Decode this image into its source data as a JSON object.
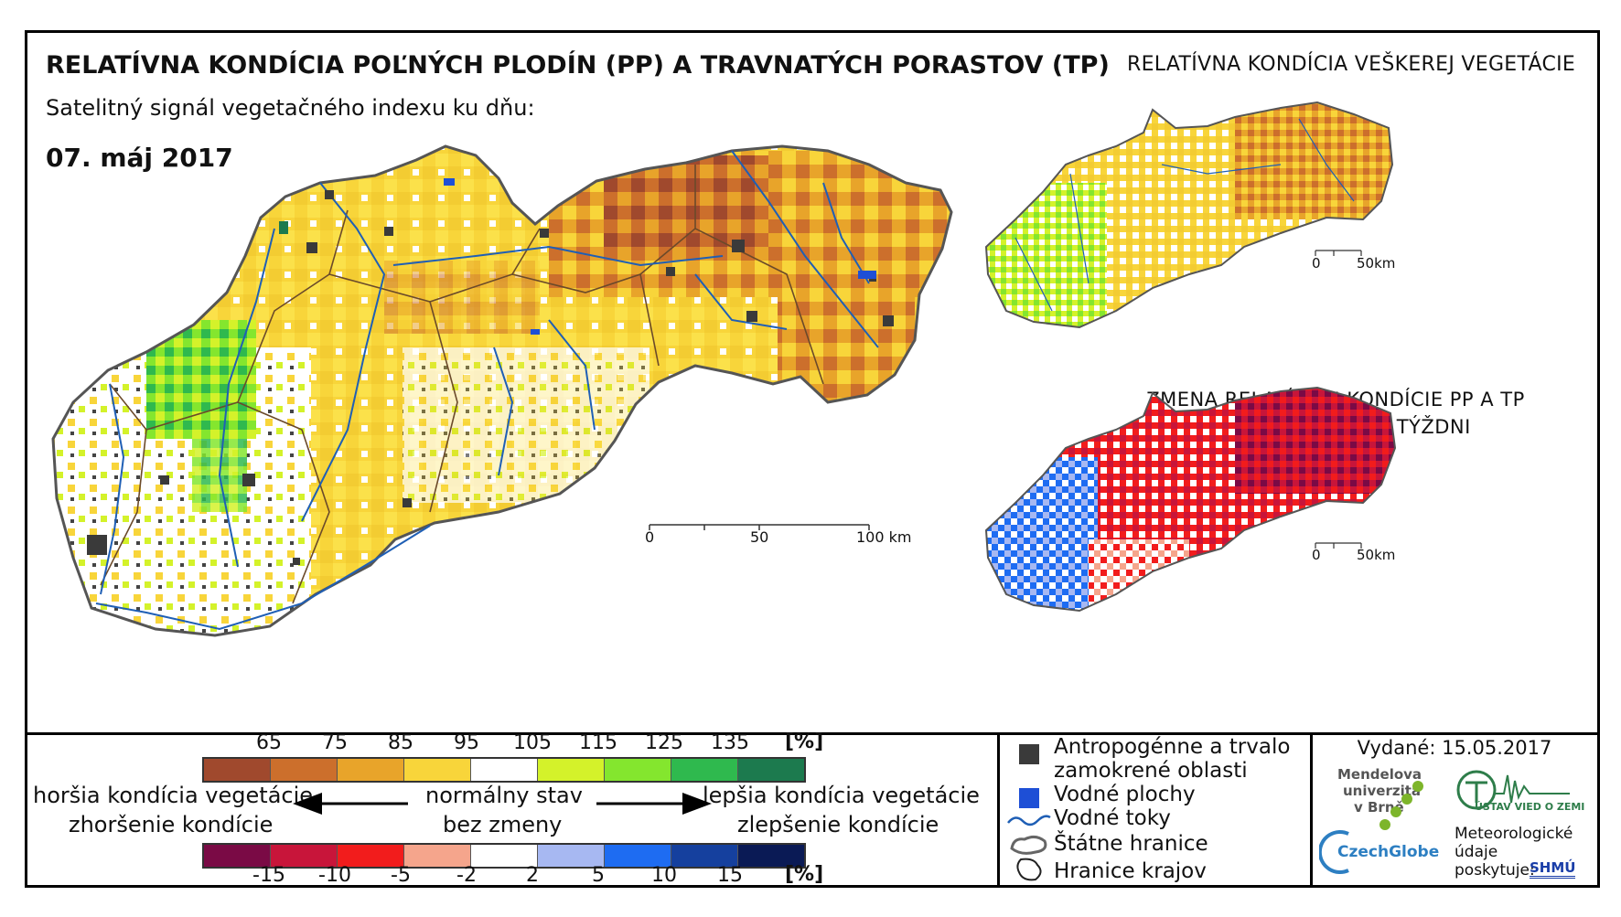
{
  "title": "RELATÍVNA KONDÍCIA POĽNÝCH PLODÍN (PP) A TRAVNATÝCH PORASTOV (TP)",
  "subtitle": "Satelitný signál vegetačného indexu ku dňu:",
  "date": "07. máj 2017",
  "inset_titles": {
    "all_vegetation": "RELATÍVNA KONDÍCIA VEŠKEREJ VEGETÁCIE",
    "change_line1": "ZMENA RELATÍVNEJ KONDÍCIE PP A TP",
    "change_line2": "OPROTI MINULÉMU TÝŽDNI"
  },
  "main_scale": {
    "ticks": [
      "0",
      "50",
      "100 km"
    ]
  },
  "inset_scale": {
    "ticks": [
      "0",
      "50km"
    ]
  },
  "condition_legend": {
    "ticks": [
      "65",
      "75",
      "85",
      "95",
      "105",
      "115",
      "125",
      "135"
    ],
    "unit": "[%]",
    "colors": [
      "#a0492d",
      "#cc6f2c",
      "#e8a42a",
      "#f8d53a",
      "#ffffff",
      "#d4f22a",
      "#84e62e",
      "#2fb94e",
      "#1c7a4e"
    ]
  },
  "change_legend": {
    "ticks": [
      "-15",
      "-10",
      "-5",
      "-2",
      "2",
      "5",
      "10",
      "15"
    ],
    "unit": "[%]",
    "colors": [
      "#7a0a45",
      "#c8153a",
      "#f21c1c",
      "#f5a58c",
      "#ffffff",
      "#a7b8f2",
      "#1e6cf2",
      "#15409e",
      "#0a1a55"
    ]
  },
  "scale_labels": {
    "worse": "horšia kondícia vegetácie",
    "normal": "normálny stav",
    "better": "lepšia kondícia vegetácie",
    "worsening": "zhoršenie kondície",
    "nochange": "bez zmeny",
    "improving": "zlepšenie kondície"
  },
  "map_legend": {
    "anthro_line1": "Antropogénne a trvalo",
    "anthro_line2": "zamokrené oblasti",
    "water_bodies": "Vodné plochy",
    "rivers": "Vodné toky",
    "state_border": "Štátne hranice",
    "region_border": "Hranice krajov"
  },
  "issued": "Vydané: 15.05.2017",
  "logos": {
    "mendel_line1": "Mendelova",
    "mendel_line2": "univerzita",
    "mendel_line3": "v Brně",
    "czechglobe": "CzechGlobe",
    "uvz": "ÚSTAV VIED O ZEMI",
    "shmu": "SHMÚ",
    "meteo_line1": "Meteorologické",
    "meteo_line2": "údaje",
    "meteo_line3": "poskytuje:"
  }
}
